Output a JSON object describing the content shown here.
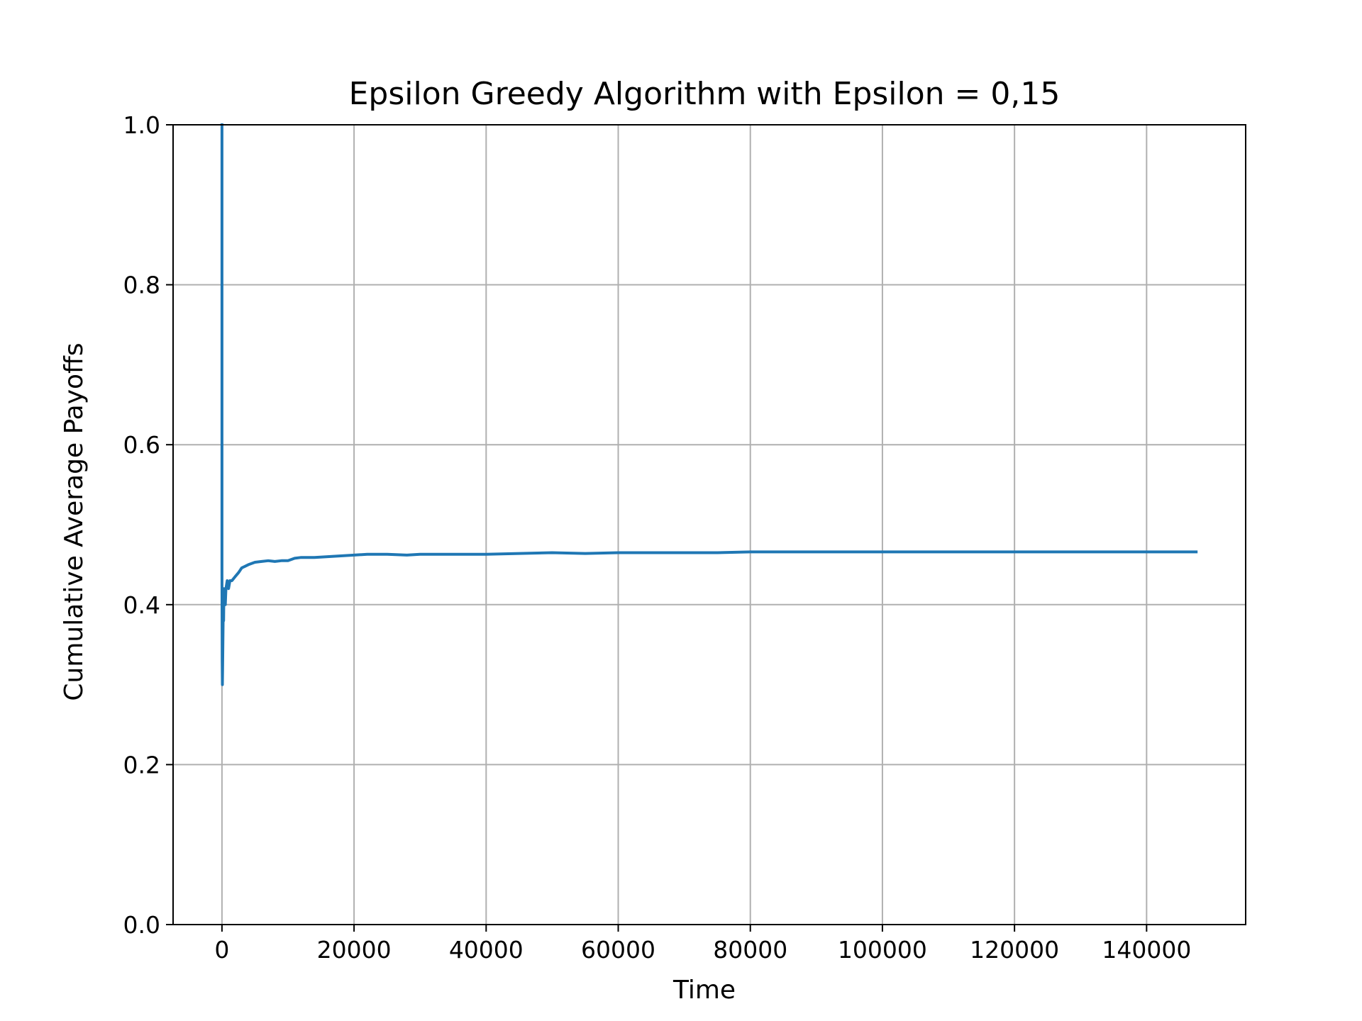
{
  "chart_data": {
    "type": "line",
    "title": "Epsilon Greedy Algorithm with Epsilon = 0,15",
    "xlabel": "Time",
    "ylabel": "Cumulative Average Payoffs",
    "xlim": [
      -7400,
      155000
    ],
    "ylim": [
      0.0,
      1.0
    ],
    "xticks": [
      0,
      20000,
      40000,
      60000,
      80000,
      100000,
      120000,
      140000
    ],
    "xtick_labels": [
      "0",
      "20000",
      "40000",
      "60000",
      "80000",
      "100000",
      "120000",
      "140000"
    ],
    "yticks": [
      0.0,
      0.2,
      0.4,
      0.6,
      0.8,
      1.0
    ],
    "ytick_labels": [
      "0.0",
      "0.2",
      "0.4",
      "0.6",
      "0.8",
      "1.0"
    ],
    "grid": true,
    "colors": {
      "line": "#1f77b4",
      "grid": "#b0b0b0",
      "axes": "#000000"
    },
    "series": [
      {
        "x": [
          0,
          0,
          30,
          60,
          100,
          150,
          200,
          250,
          300,
          400,
          500,
          600,
          800,
          1000,
          1200,
          1500,
          2000,
          2500,
          3000,
          3500,
          4000,
          5000,
          6000,
          7000,
          8000,
          9000,
          10000,
          11000,
          12000,
          14000,
          16000,
          18000,
          20000,
          22000,
          25000,
          28000,
          30000,
          35000,
          40000,
          45000,
          50000,
          55000,
          60000,
          65000,
          70000,
          75000,
          80000,
          90000,
          100000,
          110000,
          120000,
          130000,
          140000,
          147500
        ],
        "y": [
          1.0,
          0.44,
          0.33,
          0.3,
          0.32,
          0.36,
          0.4,
          0.38,
          0.42,
          0.41,
          0.4,
          0.42,
          0.43,
          0.42,
          0.43,
          0.43,
          0.435,
          0.44,
          0.446,
          0.448,
          0.45,
          0.453,
          0.454,
          0.455,
          0.454,
          0.455,
          0.455,
          0.458,
          0.459,
          0.459,
          0.46,
          0.461,
          0.462,
          0.463,
          0.463,
          0.462,
          0.463,
          0.463,
          0.463,
          0.464,
          0.465,
          0.464,
          0.465,
          0.465,
          0.465,
          0.465,
          0.466,
          0.466,
          0.466,
          0.466,
          0.466,
          0.466,
          0.466,
          0.466
        ]
      }
    ]
  }
}
